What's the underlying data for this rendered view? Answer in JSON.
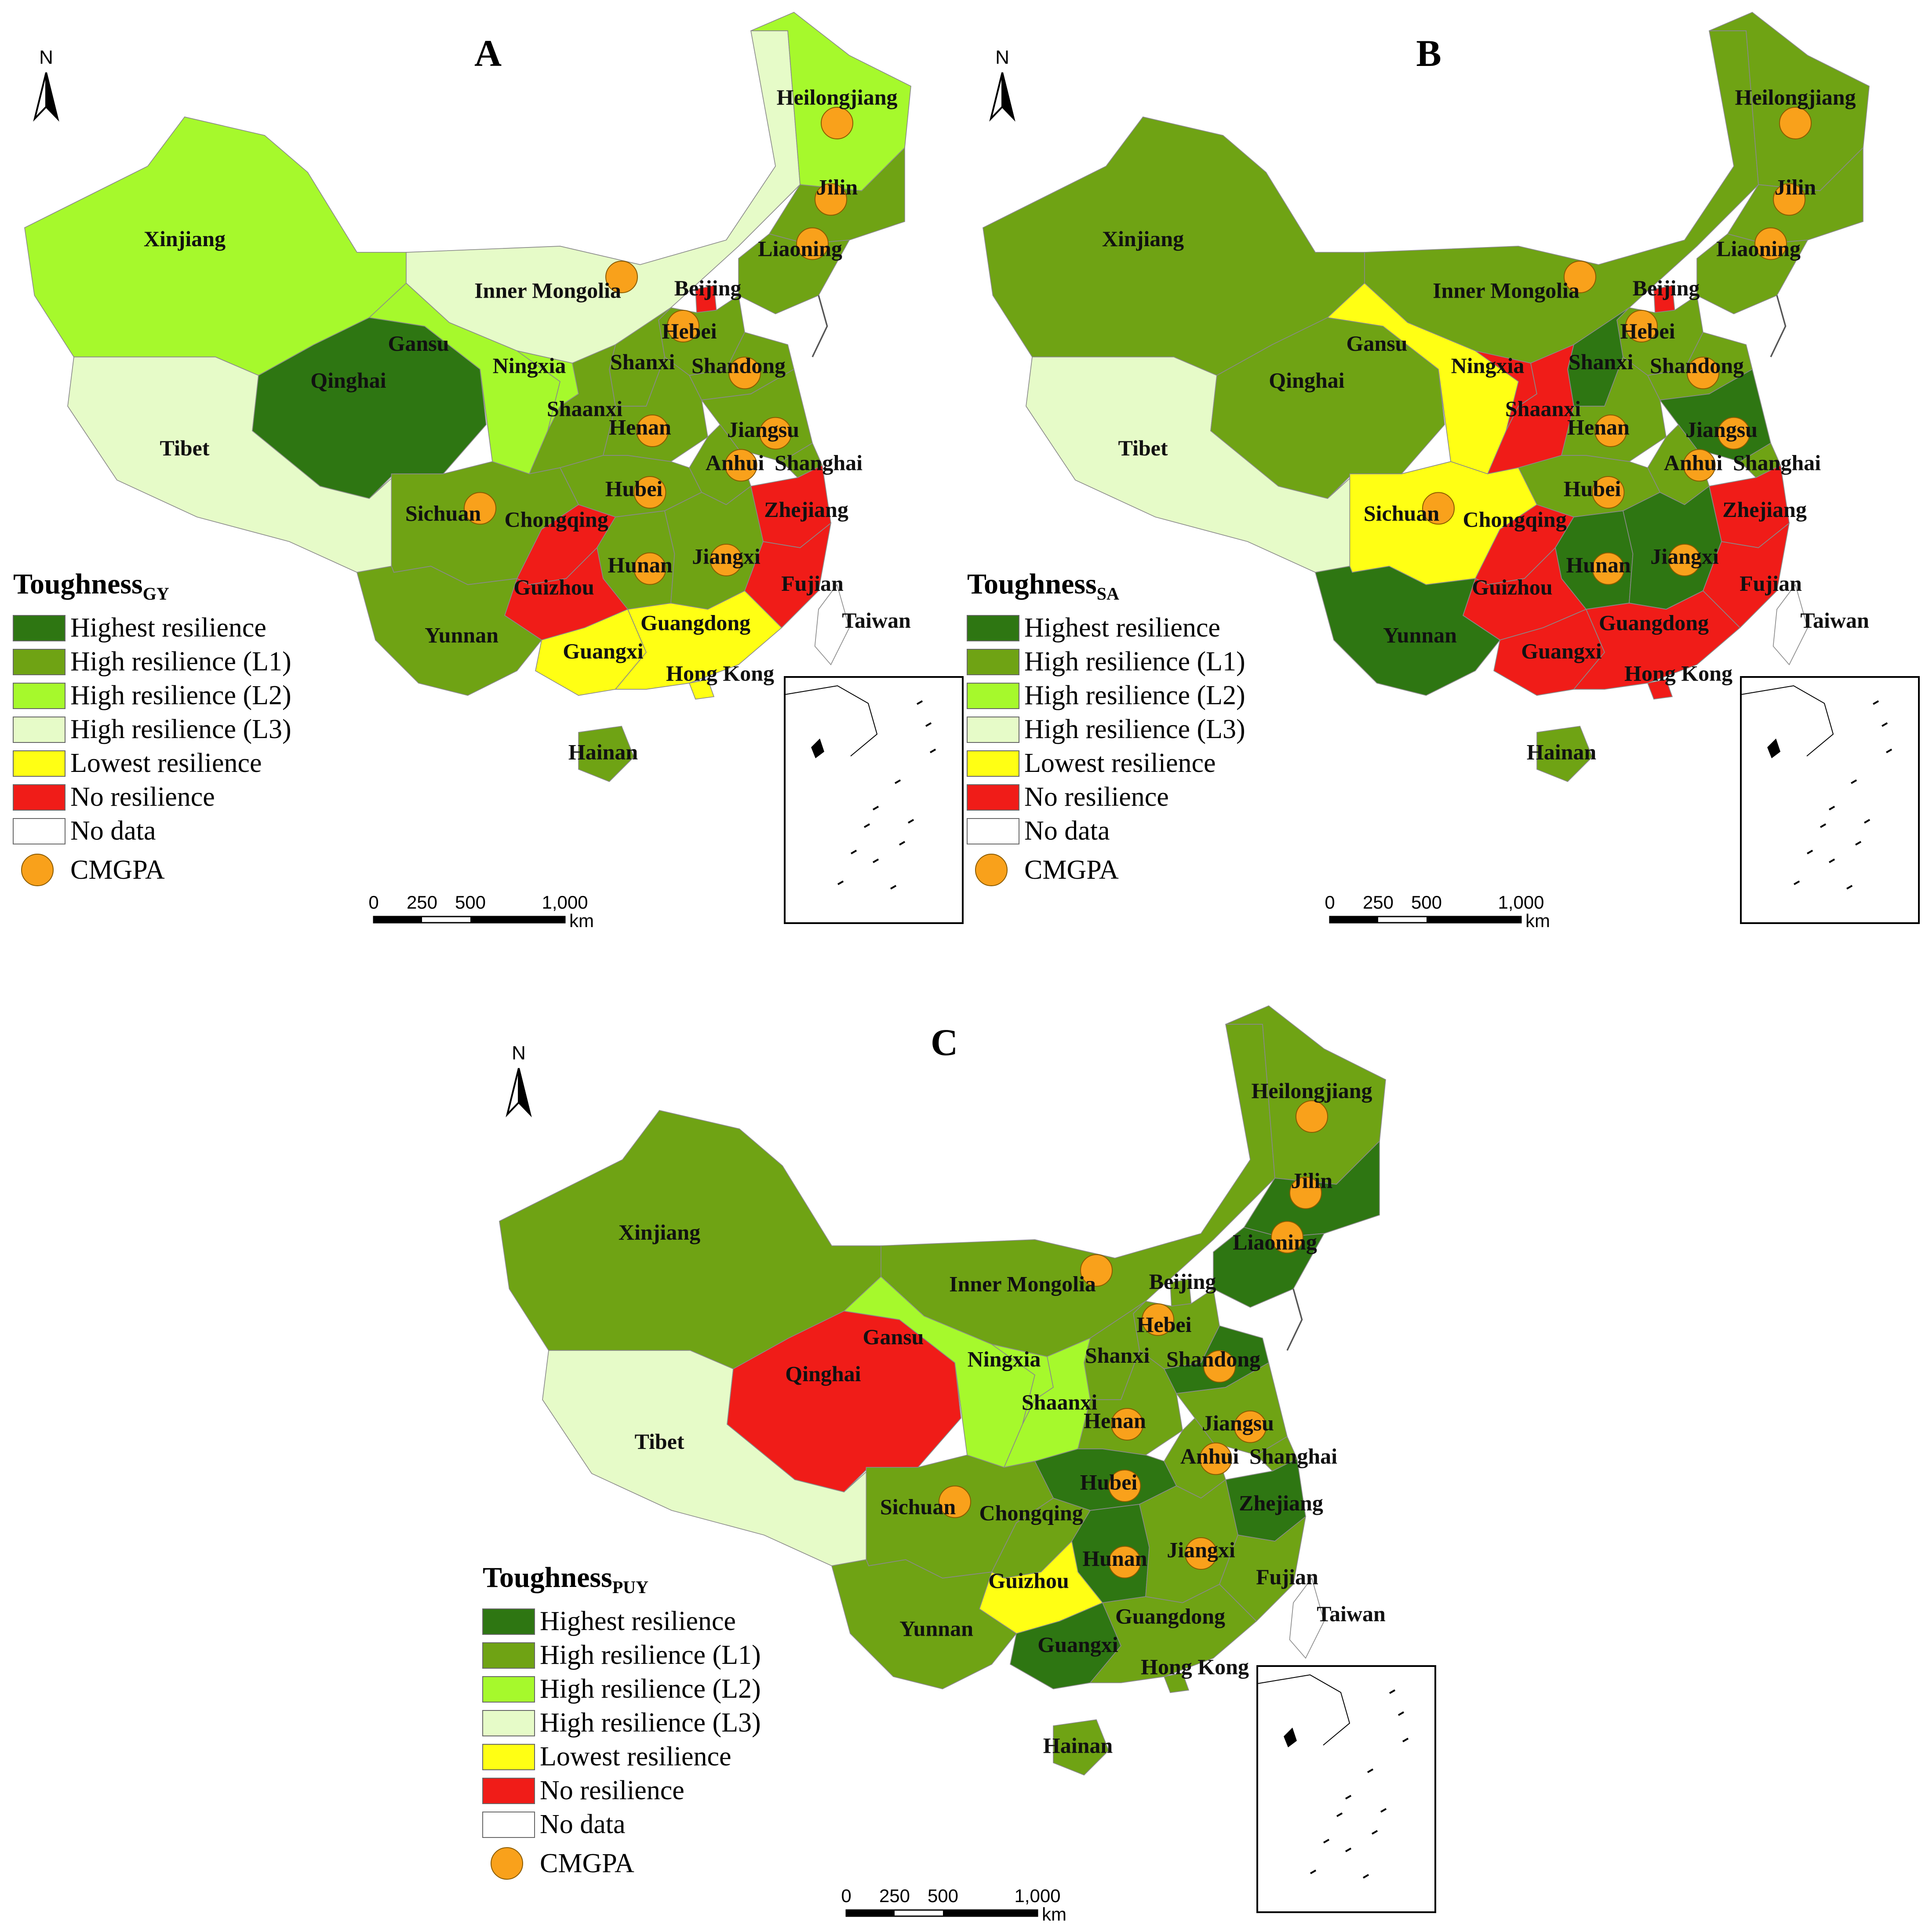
{
  "colors": {
    "highest": "#2E7612",
    "high_l1": "#6FA314",
    "high_l2": "#A6F92C",
    "high_l3": "#E6FBC8",
    "lowest": "#FFFF14",
    "none": "#F01C18",
    "no_data": "#FFFFFF",
    "cmgpa": "#F9A11B"
  },
  "legend_items": [
    {
      "key": "highest",
      "label": "Highest resilience"
    },
    {
      "key": "high_l1",
      "label": "High resilience (L1)"
    },
    {
      "key": "high_l2",
      "label": "High resilience (L2)"
    },
    {
      "key": "high_l3",
      "label": "High resilience (L3)"
    },
    {
      "key": "lowest",
      "label": "Lowest resilience"
    },
    {
      "key": "none",
      "label": "No resilience"
    },
    {
      "key": "no_data",
      "label": "No data"
    }
  ],
  "cmgpa_label": "CMGPA",
  "north_label": "N",
  "scale": {
    "ticks": [
      "0",
      "250",
      "500",
      "1,000"
    ],
    "unit": "km"
  },
  "panels": [
    {
      "letter": "A",
      "legend_title": "Toughness",
      "legend_sub": "GY",
      "regions": {
        "Xinjiang": "high_l2",
        "Tibet": "high_l3",
        "Qinghai": "highest",
        "Gansu": "high_l2",
        "Ningxia": "high_l2",
        "Inner Mongolia": "high_l3",
        "Heilongjiang": "high_l2",
        "Jilin": "high_l1",
        "Liaoning": "high_l1",
        "Beijing": "none",
        "Hebei": "high_l1",
        "Shanxi": "high_l1",
        "Shandong": "high_l1",
        "Shaanxi": "high_l1",
        "Henan": "high_l1",
        "Jiangsu": "high_l1",
        "Anhui": "high_l1",
        "Shanghai": "high_l1",
        "Hubei": "high_l1",
        "Sichuan": "high_l1",
        "Chongqing": "none",
        "Zhejiang": "none",
        "Hunan": "high_l1",
        "Jiangxi": "high_l1",
        "Guizhou": "none",
        "Fujian": "none",
        "Yunnan": "high_l1",
        "Guangxi": "lowest",
        "Guangdong": "lowest",
        "Hong Kong": "lowest",
        "Hainan": "high_l1",
        "Taiwan": "no_data"
      }
    },
    {
      "letter": "B",
      "legend_title": "Toughness",
      "legend_sub": "SA",
      "regions": {
        "Xinjiang": "high_l1",
        "Tibet": "high_l3",
        "Qinghai": "high_l1",
        "Gansu": "lowest",
        "Ningxia": "none",
        "Inner Mongolia": "high_l1",
        "Heilongjiang": "high_l1",
        "Jilin": "high_l1",
        "Liaoning": "high_l1",
        "Beijing": "none",
        "Hebei": "high_l1",
        "Shanxi": "highest",
        "Shandong": "high_l1",
        "Shaanxi": "none",
        "Henan": "high_l1",
        "Jiangsu": "highest",
        "Anhui": "high_l1",
        "Shanghai": "high_l1",
        "Hubei": "high_l1",
        "Sichuan": "lowest",
        "Chongqing": "none",
        "Zhejiang": "none",
        "Hunan": "highest",
        "Jiangxi": "highest",
        "Guizhou": "none",
        "Fujian": "none",
        "Yunnan": "highest",
        "Guangxi": "none",
        "Guangdong": "none",
        "Hong Kong": "none",
        "Hainan": "high_l1",
        "Taiwan": "no_data"
      }
    },
    {
      "letter": "C",
      "legend_title": "Toughness",
      "legend_sub": "PUY",
      "regions": {
        "Xinjiang": "high_l1",
        "Tibet": "high_l3",
        "Qinghai": "none",
        "Gansu": "high_l2",
        "Ningxia": "high_l2",
        "Inner Mongolia": "high_l1",
        "Heilongjiang": "high_l1",
        "Jilin": "highest",
        "Liaoning": "highest",
        "Beijing": "high_l1",
        "Hebei": "high_l1",
        "Shanxi": "high_l1",
        "Shandong": "highest",
        "Shaanxi": "high_l2",
        "Henan": "high_l1",
        "Jiangsu": "high_l1",
        "Anhui": "high_l1",
        "Shanghai": "high_l1",
        "Hubei": "highest",
        "Sichuan": "high_l1",
        "Chongqing": "high_l1",
        "Zhejiang": "highest",
        "Hunan": "highest",
        "Jiangxi": "high_l1",
        "Guizhou": "lowest",
        "Fujian": "high_l1",
        "Yunnan": "high_l1",
        "Guangxi": "highest",
        "Guangdong": "high_l1",
        "Hong Kong": "high_l1",
        "Hainan": "high_l1",
        "Taiwan": "no_data"
      }
    }
  ],
  "cmgpa_provinces": [
    "Heilongjiang",
    "Jilin",
    "Liaoning",
    "Inner Mongolia",
    "Hebei",
    "Shandong",
    "Henan",
    "Jiangsu",
    "Anhui",
    "Hubei",
    "Sichuan",
    "Hunan",
    "Jiangxi"
  ]
}
